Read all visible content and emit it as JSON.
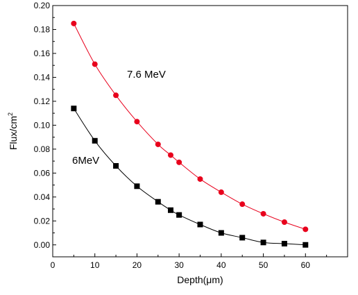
{
  "chart_data": {
    "type": "line",
    "xlabel": "Depth(μm)",
    "ylabel": "Flux/cm",
    "ylabel_superscript": "2",
    "xlim": [
      0,
      70
    ],
    "ylim": [
      -0.01,
      0.2
    ],
    "xticks": [
      0,
      10,
      20,
      30,
      40,
      50,
      60
    ],
    "yticks": [
      "0.00",
      "0.02",
      "0.04",
      "0.06",
      "0.08",
      "0.10",
      "0.12",
      "0.14",
      "0.16",
      "0.18",
      "0.20"
    ],
    "grid": false,
    "annotations": [
      {
        "text": "7.6 MeV",
        "series": "7.6 MeV"
      },
      {
        "text": "6MeV",
        "series": "6MeV"
      }
    ],
    "series": [
      {
        "name": "7.6 MeV",
        "color": "#e8001c",
        "marker": "circle",
        "x": [
          5,
          10,
          15,
          20,
          25,
          28,
          30,
          35,
          40,
          45,
          50,
          55,
          60
        ],
        "y": [
          0.185,
          0.151,
          0.125,
          0.103,
          0.084,
          0.075,
          0.069,
          0.055,
          0.044,
          0.034,
          0.026,
          0.019,
          0.013
        ]
      },
      {
        "name": "6MeV",
        "color": "#000000",
        "marker": "square",
        "x": [
          5,
          10,
          15,
          20,
          25,
          28,
          30,
          35,
          40,
          45,
          50,
          55,
          60
        ],
        "y": [
          0.114,
          0.087,
          0.066,
          0.049,
          0.036,
          0.029,
          0.025,
          0.017,
          0.01,
          0.006,
          0.002,
          0.001,
          0.0
        ]
      }
    ]
  }
}
